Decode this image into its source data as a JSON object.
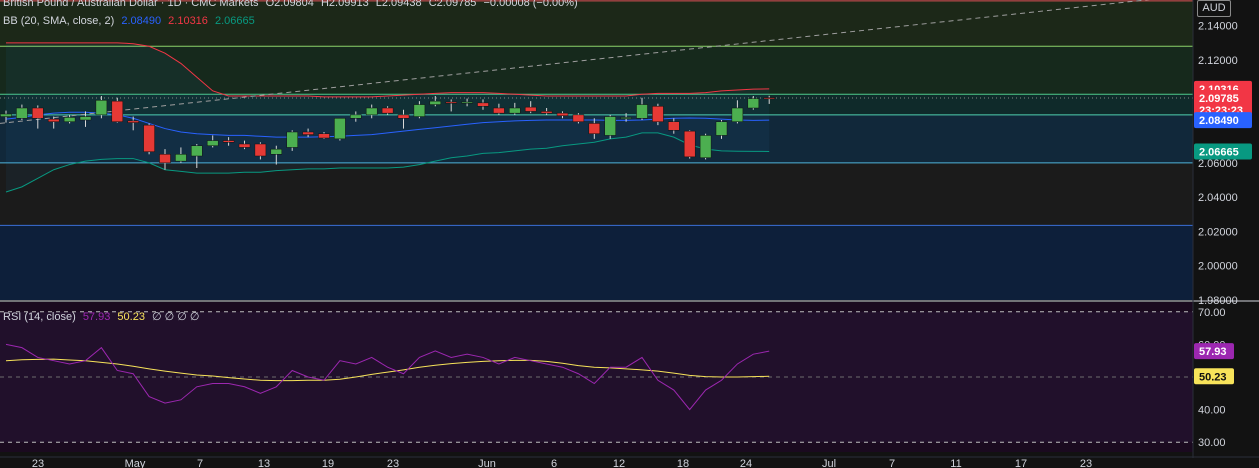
{
  "header": {
    "symbol": "British Pound / Australian Dollar · 1D · CMC Markets",
    "open": "O2.09804",
    "high": "H2.09913",
    "low": "L2.09438",
    "close": "C2.09785",
    "change": "−0.00008 (−0.00%)"
  },
  "bb_legend": {
    "label": "BB (20, SMA, close, 2)",
    "basis": "2.08490",
    "upper": "2.10316",
    "lower": "2.06665"
  },
  "rsi_legend": {
    "label": "RSI (14, close)",
    "rsi": "57.93",
    "ma": "50.23",
    "extra": "∅ ∅ ∅ ∅"
  },
  "currency": "AUD",
  "colors": {
    "up": "#4caf50",
    "down": "#e53935",
    "bb_basis": "#2962ff",
    "bb_upper": "#f23645",
    "bb_lower": "#089981",
    "rsi_line": "#9c27b0",
    "rsi_ma": "#f7e35a",
    "price_badge": "#f23645"
  },
  "chart_data": [
    {
      "type": "candlestick",
      "x_labels": [
        "23",
        "May",
        "7",
        "13",
        "19",
        "23",
        "Jun",
        "6",
        "12",
        "18",
        "24",
        "Jul",
        "7",
        "11",
        "17",
        "23"
      ],
      "y_ticks": [
        "2.14000",
        "2.12000",
        "2.10316",
        "2.09785",
        "2.08490",
        "2.06665",
        "2.06000",
        "2.04000",
        "2.02000",
        "2.00000",
        "1.98000"
      ],
      "ylim": [
        1.98,
        2.155
      ],
      "candles": [
        {
          "o": 2.087,
          "h": 2.0905,
          "l": 2.0835,
          "c": 2.0885
        },
        {
          "o": 2.086,
          "h": 2.094,
          "l": 2.085,
          "c": 2.092
        },
        {
          "o": 2.092,
          "h": 2.0935,
          "l": 2.08,
          "c": 2.086
        },
        {
          "o": 2.0855,
          "h": 2.087,
          "l": 2.08,
          "c": 2.084
        },
        {
          "o": 2.084,
          "h": 2.088,
          "l": 2.083,
          "c": 2.0865
        },
        {
          "o": 2.085,
          "h": 2.09,
          "l": 2.081,
          "c": 2.087
        },
        {
          "o": 2.088,
          "h": 2.099,
          "l": 2.086,
          "c": 2.0965
        },
        {
          "o": 2.096,
          "h": 2.098,
          "l": 2.0835,
          "c": 2.084
        },
        {
          "o": 2.0845,
          "h": 2.087,
          "l": 2.079,
          "c": 2.0835
        },
        {
          "o": 2.082,
          "h": 2.083,
          "l": 2.065,
          "c": 2.0665
        },
        {
          "o": 2.065,
          "h": 2.068,
          "l": 2.056,
          "c": 2.06
        },
        {
          "o": 2.061,
          "h": 2.069,
          "l": 2.06,
          "c": 2.065
        },
        {
          "o": 2.064,
          "h": 2.071,
          "l": 2.057,
          "c": 2.07
        },
        {
          "o": 2.07,
          "h": 2.076,
          "l": 2.069,
          "c": 2.073
        },
        {
          "o": 2.073,
          "h": 2.075,
          "l": 2.07,
          "c": 2.072
        },
        {
          "o": 2.071,
          "h": 2.073,
          "l": 2.068,
          "c": 2.069
        },
        {
          "o": 2.071,
          "h": 2.072,
          "l": 2.062,
          "c": 2.064
        },
        {
          "o": 2.065,
          "h": 2.07,
          "l": 2.059,
          "c": 2.068
        },
        {
          "o": 2.069,
          "h": 2.079,
          "l": 2.067,
          "c": 2.078
        },
        {
          "o": 2.078,
          "h": 2.08,
          "l": 2.075,
          "c": 2.0765
        },
        {
          "o": 2.077,
          "h": 2.078,
          "l": 2.074,
          "c": 2.0745
        },
        {
          "o": 2.074,
          "h": 2.086,
          "l": 2.073,
          "c": 2.086
        },
        {
          "o": 2.086,
          "h": 2.09,
          "l": 2.084,
          "c": 2.088
        },
        {
          "o": 2.088,
          "h": 2.094,
          "l": 2.086,
          "c": 2.092
        },
        {
          "o": 2.092,
          "h": 2.093,
          "l": 2.088,
          "c": 2.089
        },
        {
          "o": 2.088,
          "h": 2.091,
          "l": 2.08,
          "c": 2.086
        },
        {
          "o": 2.087,
          "h": 2.096,
          "l": 2.086,
          "c": 2.094
        },
        {
          "o": 2.094,
          "h": 2.099,
          "l": 2.093,
          "c": 2.096
        },
        {
          "o": 2.0955,
          "h": 2.097,
          "l": 2.09,
          "c": 2.095
        },
        {
          "o": 2.095,
          "h": 2.0975,
          "l": 2.093,
          "c": 2.0955
        },
        {
          "o": 2.095,
          "h": 2.097,
          "l": 2.091,
          "c": 2.093
        },
        {
          "o": 2.092,
          "h": 2.0945,
          "l": 2.088,
          "c": 2.089
        },
        {
          "o": 2.089,
          "h": 2.095,
          "l": 2.088,
          "c": 2.092
        },
        {
          "o": 2.0925,
          "h": 2.096,
          "l": 2.089,
          "c": 2.09
        },
        {
          "o": 2.09,
          "h": 2.092,
          "l": 2.088,
          "c": 2.089
        },
        {
          "o": 2.089,
          "h": 2.09,
          "l": 2.086,
          "c": 2.0875
        },
        {
          "o": 2.088,
          "h": 2.089,
          "l": 2.083,
          "c": 2.084
        },
        {
          "o": 2.083,
          "h": 2.086,
          "l": 2.074,
          "c": 2.077
        },
        {
          "o": 2.076,
          "h": 2.088,
          "l": 2.074,
          "c": 2.087
        },
        {
          "o": 2.086,
          "h": 2.089,
          "l": 2.084,
          "c": 2.0865
        },
        {
          "o": 2.086,
          "h": 2.098,
          "l": 2.085,
          "c": 2.094
        },
        {
          "o": 2.093,
          "h": 2.0945,
          "l": 2.082,
          "c": 2.084
        },
        {
          "o": 2.084,
          "h": 2.086,
          "l": 2.077,
          "c": 2.079
        },
        {
          "o": 2.0785,
          "h": 2.079,
          "l": 2.0625,
          "c": 2.0635
        },
        {
          "o": 2.063,
          "h": 2.077,
          "l": 2.062,
          "c": 2.076
        },
        {
          "o": 2.076,
          "h": 2.085,
          "l": 2.074,
          "c": 2.084
        },
        {
          "o": 2.084,
          "h": 2.0965,
          "l": 2.083,
          "c": 2.092
        },
        {
          "o": 2.092,
          "h": 2.099,
          "l": 2.091,
          "c": 2.0975
        },
        {
          "o": 2.09804,
          "h": 2.09913,
          "l": 2.09438,
          "c": 2.09785
        }
      ],
      "bollinger": {
        "upper": [
          2.13,
          2.13,
          2.13,
          2.13,
          2.13,
          2.13,
          2.13,
          2.13,
          2.1295,
          2.128,
          2.124,
          2.118,
          2.11,
          2.102,
          2.099,
          2.099,
          2.099,
          2.099,
          2.099,
          2.099,
          2.0985,
          2.0985,
          2.0985,
          2.0985,
          2.099,
          2.0995,
          2.1,
          2.1005,
          2.101,
          2.101,
          2.101,
          2.1005,
          2.1,
          2.0995,
          2.099,
          2.099,
          2.099,
          2.099,
          2.099,
          2.099,
          2.1,
          2.1005,
          2.1005,
          2.1005,
          2.101,
          2.102,
          2.1025,
          2.103,
          2.10316
        ],
        "basis": [
          2.0855,
          2.0865,
          2.088,
          2.089,
          2.0895,
          2.0895,
          2.089,
          2.088,
          2.086,
          2.083,
          2.08,
          2.078,
          2.077,
          2.0765,
          2.076,
          2.076,
          2.0755,
          2.075,
          2.075,
          2.075,
          2.0752,
          2.0755,
          2.076,
          2.0765,
          2.0775,
          2.0785,
          2.0795,
          2.0805,
          2.0815,
          2.0825,
          2.0835,
          2.084,
          2.0845,
          2.0848,
          2.085,
          2.085,
          2.085,
          2.085,
          2.0848,
          2.0848,
          2.085,
          2.0855,
          2.086,
          2.0862,
          2.086,
          2.0855,
          2.085,
          2.0848,
          2.0849
        ],
        "lower": [
          2.043,
          2.046,
          2.051,
          2.056,
          2.059,
          2.061,
          2.062,
          2.0625,
          2.0625,
          2.06,
          2.056,
          2.055,
          2.054,
          2.054,
          2.054,
          2.0545,
          2.0545,
          2.0555,
          2.056,
          2.0565,
          2.0565,
          2.057,
          2.057,
          2.057,
          2.057,
          2.0575,
          2.059,
          2.061,
          2.063,
          2.064,
          2.0655,
          2.066,
          2.067,
          2.068,
          2.0685,
          2.07,
          2.071,
          2.072,
          2.074,
          2.075,
          2.0775,
          2.0775,
          2.075,
          2.0705,
          2.068,
          2.067,
          2.0668,
          2.0667,
          2.06665
        ]
      },
      "levels": [
        2.0235,
        2.06,
        2.088,
        2.1,
        2.128,
        2.1545
      ],
      "trendline": {
        "from": 2.083,
        "to": 2.158
      }
    },
    {
      "type": "line",
      "title": "RSI (14, close)",
      "y_ticks": [
        "70.00",
        "60.00",
        "57.93",
        "50.23",
        "40.00",
        "30.00"
      ],
      "ylim": [
        27,
        73
      ],
      "bands": [
        70,
        50,
        30
      ],
      "series": [
        {
          "name": "RSI",
          "values": [
            60,
            59,
            56,
            55,
            54,
            55,
            59,
            52,
            51,
            44,
            42,
            43,
            47,
            48,
            48,
            47,
            45,
            47,
            52,
            50,
            49,
            55,
            54,
            56,
            53,
            51,
            56,
            58,
            56,
            57,
            56,
            54,
            56,
            55,
            54,
            53,
            51,
            48,
            53,
            53,
            56,
            49,
            46,
            40,
            46,
            49,
            54,
            57,
            57.93
          ]
        },
        {
          "name": "RSI-based MA",
          "values": [
            55,
            55.3,
            55.4,
            55.5,
            55.2,
            55,
            54.5,
            54,
            53.3,
            52.5,
            51.8,
            51.2,
            50.6,
            50.3,
            49.8,
            49.4,
            49,
            48.9,
            48.9,
            49,
            49,
            49.3,
            50,
            50.8,
            51.5,
            52.2,
            53,
            53.6,
            54.1,
            54.5,
            54.8,
            55,
            55.1,
            55.1,
            54.8,
            54.2,
            53.5,
            53,
            52.8,
            52.5,
            52.2,
            51.8,
            51.2,
            50.5,
            50.1,
            50.0,
            50.0,
            50.1,
            50.23
          ]
        }
      ]
    }
  ]
}
